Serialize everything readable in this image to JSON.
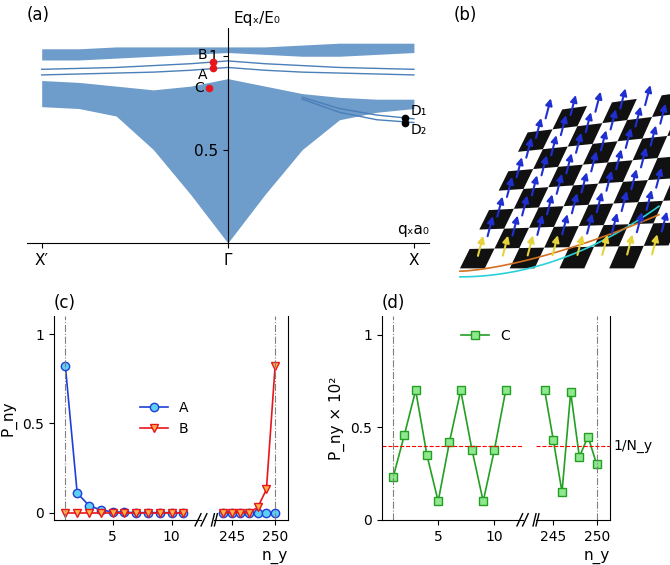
{
  "chart_data": [
    {
      "type": "band",
      "title": "(a)",
      "x_label": "qₓa₀",
      "y_label": "Eqₓ/E₀",
      "x": [
        -1,
        -0.8,
        -0.6,
        -0.4,
        -0.2,
        0,
        0.2,
        0.4,
        0.6,
        0.8,
        1
      ],
      "xlim": [
        -1.08,
        1.08
      ],
      "xticks": [
        {
          "value": -1,
          "label": "X′"
        },
        {
          "value": 0,
          "label": "Γ"
        },
        {
          "value": 1,
          "label": "X"
        }
      ],
      "ylim": [
        0,
        1.15
      ],
      "yticks": [
        0.5,
        1
      ],
      "series": [
        {
          "type": "area",
          "color": "#6e9ccb",
          "lower": [
            0.73,
            0.72,
            0.68,
            0.5,
            0.26,
            0,
            0.26,
            0.5,
            0.66,
            0.7,
            0.72
          ],
          "upper": [
            0.87,
            0.86,
            0.84,
            0.82,
            0.84,
            0.88,
            0.84,
            0.8,
            0.78,
            0.77,
            0.77
          ]
        },
        {
          "type": "area",
          "color": "#6e9ccb",
          "lower": [
            0.98,
            0.98,
            0.99,
            1.0,
            1.01,
            1.02,
            1.01,
            1.0,
            1.0,
            1.01,
            1.02
          ],
          "upper": [
            1.04,
            1.04,
            1.05,
            1.05,
            1.05,
            1.05,
            1.05,
            1.06,
            1.07,
            1.07,
            1.07
          ]
        },
        {
          "type": "line",
          "color": "#4a7fb8",
          "values": [
            0.93,
            0.935,
            0.94,
            0.95,
            0.96,
            0.975,
            0.96,
            0.95,
            0.94,
            0.935,
            0.93
          ]
        },
        {
          "type": "line",
          "color": "#4a7fb8",
          "values": [
            0.9,
            0.905,
            0.91,
            0.915,
            0.925,
            0.94,
            0.925,
            0.915,
            0.91,
            0.905,
            0.9
          ]
        },
        {
          "type": "line",
          "color": "#4a7fb8",
          "values": [
            null,
            null,
            null,
            null,
            null,
            null,
            null,
            0.78,
            0.72,
            0.685,
            0.665
          ]
        },
        {
          "type": "line",
          "color": "#4a7fb8",
          "values": [
            null,
            null,
            null,
            null,
            null,
            null,
            null,
            0.77,
            0.7,
            0.66,
            0.645
          ]
        }
      ],
      "points": [
        {
          "label": "B",
          "x": -0.08,
          "y": 0.97,
          "color": "#e8151b"
        },
        {
          "label": "A",
          "x": -0.08,
          "y": 0.935,
          "color": "#e8151b"
        },
        {
          "label": "C",
          "x": -0.1,
          "y": 0.83,
          "color": "#e8151b"
        },
        {
          "label": "D₁",
          "x": 0.95,
          "y": 0.67,
          "color": "#000000"
        },
        {
          "label": "D₂",
          "x": 0.95,
          "y": 0.645,
          "color": "#000000"
        }
      ]
    },
    {
      "type": "image",
      "title": "(b)"
    },
    {
      "type": "line",
      "title": "(c)",
      "y_label": "P_ny",
      "x": [
        1,
        2,
        3,
        4,
        5,
        6,
        7,
        8,
        9,
        10,
        11
      ],
      "xlim": [
        0,
        12.5
      ],
      "xticks": [
        5,
        10
      ],
      "ylim": [
        -0.04,
        1.1
      ],
      "yticks": [
        0,
        0.5,
        1
      ],
      "boundaries": [
        1
      ],
      "legend": "center right",
      "series": [
        {
          "name": "A",
          "color": "#1f3fd6",
          "marker": "o",
          "values": [
            0.82,
            0.11,
            0.04,
            0.015,
            0.005,
            0.002,
            0,
            0,
            0,
            0,
            0
          ]
        },
        {
          "name": "B",
          "color": "#e8151b",
          "marker": "v",
          "values": [
            0,
            0,
            0,
            0,
            0,
            0,
            0,
            0,
            0,
            0,
            0
          ]
        }
      ]
    },
    {
      "type": "line",
      "x_label": "n_y",
      "x": [
        244,
        245,
        246,
        247,
        248,
        249,
        250
      ],
      "xlim": [
        243,
        251.5
      ],
      "xticks": [
        245,
        250
      ],
      "ylim": [
        -0.04,
        1.1
      ],
      "tick_labels": "x",
      "boundaries": [
        250
      ],
      "series": [
        {
          "color": "#1f3fd6",
          "marker": "o",
          "values": [
            0,
            0,
            0,
            0,
            0,
            0,
            0
          ]
        },
        {
          "color": "#e8151b",
          "marker": "v",
          "values": [
            0,
            0,
            0,
            0,
            0.03,
            0.13,
            0.82
          ]
        }
      ]
    },
    {
      "type": "line",
      "title": "(d)",
      "y_label": "P_ny × 10²",
      "x": [
        1,
        2,
        3,
        4,
        5,
        6,
        7,
        8,
        9,
        10,
        11
      ],
      "xlim": [
        0,
        12.5
      ],
      "xticks": [
        5,
        10
      ],
      "ylim": [
        0,
        1.1
      ],
      "yticks": [
        0,
        0.5,
        1
      ],
      "boundaries": [
        1
      ],
      "legend": "upper right",
      "reference": {
        "value": 0.4
      },
      "series": [
        {
          "name": "C",
          "color": "#22a022",
          "marker": "s",
          "values": [
            0.23,
            0.46,
            0.7,
            0.35,
            0.1,
            0.42,
            0.7,
            0.38,
            0.1,
            0.38,
            0.7
          ]
        }
      ]
    },
    {
      "type": "line",
      "x_label": "n_y",
      "x": [
        244,
        245,
        246,
        247,
        248,
        249,
        250
      ],
      "xlim": [
        243,
        251.5
      ],
      "xticks": [
        245,
        250
      ],
      "ylim": [
        0,
        1.1
      ],
      "tick_labels": "x",
      "boundaries": [
        250
      ],
      "reference": {
        "value": 0.4,
        "label": "1/N_y"
      },
      "series": [
        {
          "color": "#22a022",
          "marker": "s",
          "values": [
            0.7,
            0.43,
            0.15,
            0.69,
            0.34,
            0.45,
            0.3
          ]
        }
      ]
    }
  ]
}
